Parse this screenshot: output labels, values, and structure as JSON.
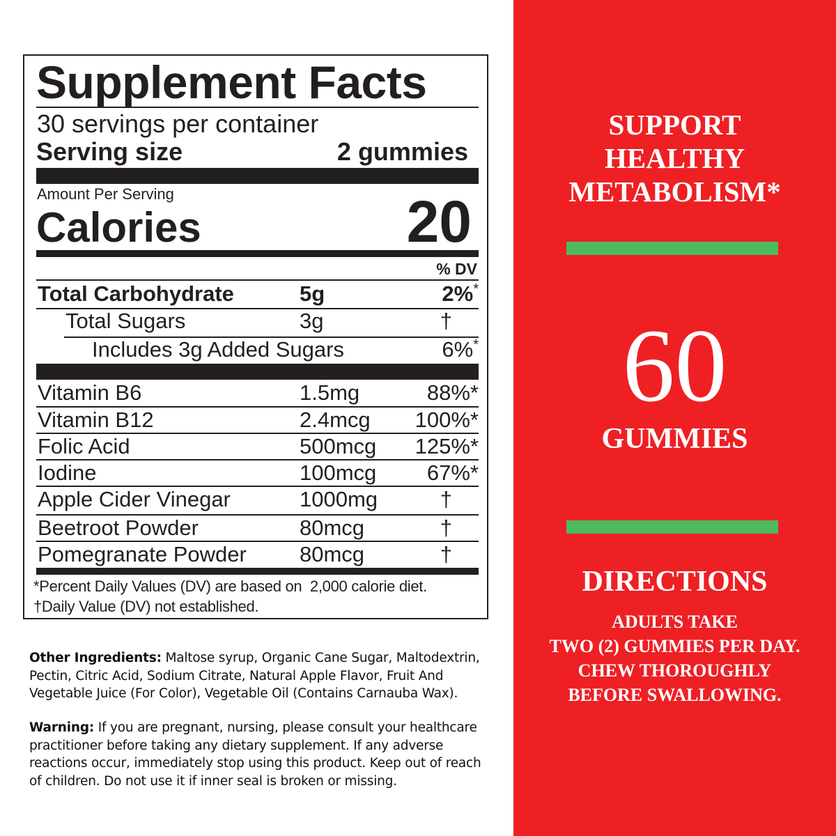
{
  "facts": {
    "title": "Supplement Facts",
    "servings_per_container": "30 servings per container",
    "serving_size_label": "Serving size",
    "serving_size_value": "2 gummies",
    "amount_per_serving": "Amount Per Serving",
    "calories_label": "Calories",
    "calories_value": "20",
    "dv_header": "% DV",
    "carb_rows": [
      {
        "name": "Total Carbohydrate",
        "amount": "5g",
        "dv": "2%",
        "mark": "*"
      },
      {
        "name": "Total Sugars",
        "amount": "3g",
        "dv": "†",
        "mark": ""
      },
      {
        "name": "Includes 3g Added Sugars",
        "amount": "",
        "dv": "6%",
        "mark": "*"
      }
    ],
    "nutrients": [
      {
        "name": "Vitamin B6",
        "amount": "1.5mg",
        "dv": "88%*"
      },
      {
        "name": "Vitamin B12",
        "amount": "2.4mcg",
        "dv": "100%*"
      },
      {
        "name": "Folic Acid",
        "amount": "500mcg",
        "dv": "125%*"
      },
      {
        "name": "Iodine",
        "amount": "100mcg",
        "dv": "67%*"
      },
      {
        "name": "Apple Cider Vinegar",
        "amount": "1000mg",
        "dv": "†"
      },
      {
        "name": "Beetroot Powder",
        "amount": "80mcg",
        "dv": "†"
      },
      {
        "name": "Pomegranate Powder",
        "amount": "80mcg",
        "dv": "†"
      }
    ],
    "footnote_1": "*Percent Daily Values (DV) are based on  2,000 calorie diet.",
    "footnote_2": "†Daily Value (DV) not established."
  },
  "ingredients": {
    "label": "Other Ingredients:",
    "text": " Maltose syrup, Organic Cane Sugar, Maltodextrin, Pectin, Citric Acid, Sodium Citrate, Natural Apple Flavor, Fruit And Vegetable Juice (For Color), Vegetable Oil (Contains Carnauba Wax)."
  },
  "warning": {
    "label": "Warning:",
    "text": " If you are pregnant, nursing, please consult your healthcare practitioner before taking any dietary supplement. If any adverse reactions occur, immediately stop using this product. Keep out of reach of children. Do not use it if inner seal is broken or missing."
  },
  "panel": {
    "headline": [
      "SUPPORT",
      "HEALTHY",
      "METABOLISM*"
    ],
    "count": "60",
    "count_label": "GUMMIES",
    "directions_title": "DIRECTIONS",
    "directions": [
      "ADULTS TAKE",
      "TWO (2) GUMMIES PER DAY.",
      "CHEW THOROUGHLY",
      "BEFORE SWALLOWING."
    ]
  },
  "colors": {
    "panel_red": "#ee2024",
    "accent_green": "#4cbb5e",
    "ink": "#231f20"
  }
}
